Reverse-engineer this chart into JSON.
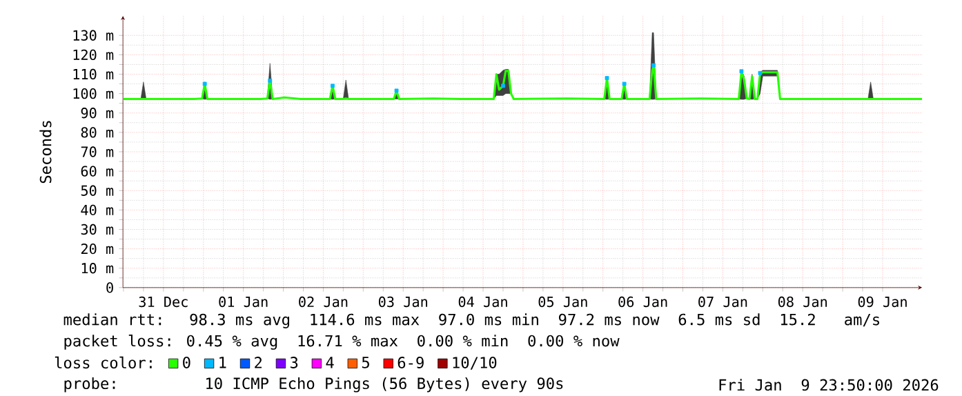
{
  "chart_data": {
    "type": "line",
    "ylabel": "Seconds",
    "legend_title": "loss color:",
    "annotations": [
      "median rtt:  98.3 ms avg  114.6 ms max  97.0 ms min  97.2 ms now  6.5 ms sd  15.2   am/s",
      "packet loss: 0.45 % avg  16.71 % max  0.00 % min  0.00 % now",
      "probe:       10 ICMP Echo Pings (56 Bytes) every 90s",
      "Fri Jan  9 23:50:00 2026"
    ],
    "xlim": [
      "2025-12-30T23:50",
      "2026-01-09T23:50"
    ],
    "xticks": [
      {
        "value": "2025-12-31T00:00",
        "label": null
      },
      {
        "value": "2025-12-31T12:00",
        "label": "31 Dec"
      },
      {
        "value": "2026-01-01T00:00",
        "label": null
      },
      {
        "value": "2026-01-01T12:00",
        "label": "01 Jan"
      },
      {
        "value": "2026-01-02T00:00",
        "label": null
      },
      {
        "value": "2026-01-02T12:00",
        "label": "02 Jan"
      },
      {
        "value": "2026-01-03T00:00",
        "label": null
      },
      {
        "value": "2026-01-03T12:00",
        "label": "03 Jan"
      },
      {
        "value": "2026-01-04T00:00",
        "label": null
      },
      {
        "value": "2026-01-04T12:00",
        "label": "04 Jan"
      },
      {
        "value": "2026-01-05T00:00",
        "label": null
      },
      {
        "value": "2026-01-05T12:00",
        "label": "05 Jan"
      },
      {
        "value": "2026-01-06T00:00",
        "label": null
      },
      {
        "value": "2026-01-06T12:00",
        "label": "06 Jan"
      },
      {
        "value": "2026-01-07T00:00",
        "label": null
      },
      {
        "value": "2026-01-07T12:00",
        "label": "07 Jan"
      },
      {
        "value": "2026-01-08T00:00",
        "label": null
      },
      {
        "value": "2026-01-08T12:00",
        "label": "08 Jan"
      },
      {
        "value": "2026-01-09T00:00",
        "label": null
      },
      {
        "value": "2026-01-09T12:00",
        "label": "09 Jan"
      }
    ],
    "ylim": [
      0,
      140
    ],
    "yticks": [
      {
        "value": 0,
        "label": "0"
      },
      {
        "value": 10,
        "label": "10 m"
      },
      {
        "value": 20,
        "label": "20 m"
      },
      {
        "value": 30,
        "label": "30 m"
      },
      {
        "value": 40,
        "label": "40 m"
      },
      {
        "value": 50,
        "label": "50 m"
      },
      {
        "value": 60,
        "label": "60 m"
      },
      {
        "value": 70,
        "label": "70 m"
      },
      {
        "value": 80,
        "label": "80 m"
      },
      {
        "value": 90,
        "label": "90 m"
      },
      {
        "value": 100,
        "label": "100 m"
      },
      {
        "value": 110,
        "label": "110 m"
      },
      {
        "value": 120,
        "label": "120 m"
      },
      {
        "value": 130,
        "label": "130 m"
      }
    ],
    "grid": true,
    "legend": "bottom",
    "series": [
      {
        "name": "0",
        "color": "#26ff00",
        "x": [
          "2025-12-31T00:00",
          "2025-12-31T05:12",
          "2025-12-31T06:00",
          "2025-12-31T06:48",
          "2025-12-31T21:12",
          "2025-12-31T23:36",
          "2026-01-01T00:24",
          "2026-01-01T01:12",
          "2026-01-01T17:12",
          "2026-01-01T19:12",
          "2026-01-01T20:00",
          "2026-01-01T20:48",
          "2026-01-02T00:24",
          "2026-01-02T05:12",
          "2026-01-02T14:00",
          "2026-01-02T14:48",
          "2026-01-02T15:36",
          "2026-01-02T18:00",
          "2026-01-02T18:48",
          "2026-01-02T19:36",
          "2026-01-03T09:12",
          "2026-01-03T10:00",
          "2026-01-03T10:48",
          "2026-01-03T21:12",
          "2026-01-04T05:12",
          "2026-01-04T15:12",
          "2026-01-04T16:00",
          "2026-01-04T16:48",
          "2026-01-04T18:00",
          "2026-01-04T18:48",
          "2026-01-04T19:36",
          "2026-01-04T20:24",
          "2026-01-04T21:12",
          "2026-01-05T13:12",
          "2026-01-06T00:24",
          "2026-01-06T01:12",
          "2026-01-06T02:00",
          "2026-01-06T05:36",
          "2026-01-06T06:24",
          "2026-01-06T07:12",
          "2026-01-06T14:00",
          "2026-01-06T14:48",
          "2026-01-06T15:12",
          "2026-01-06T16:00",
          "2026-01-07T05:12",
          "2026-01-07T16:48",
          "2026-01-07T17:36",
          "2026-01-07T18:24",
          "2026-01-07T19:12",
          "2026-01-07T20:00",
          "2026-01-07T20:48",
          "2026-01-07T21:36",
          "2026-01-07T22:24",
          "2026-01-07T23:12",
          "2026-01-08T00:00",
          "2026-01-08T04:24",
          "2026-01-08T05:12",
          "2026-01-08T21:12",
          "2026-01-09T07:36",
          "2026-01-09T08:24",
          "2026-01-09T09:12",
          "2026-01-09T23:50"
        ],
        "values": [
          97.2,
          97.2,
          97.2,
          97.2,
          97.2,
          97.5,
          105,
          97.2,
          97.2,
          97.5,
          106.7,
          97.2,
          98,
          97.2,
          97.2,
          104,
          97.2,
          97.2,
          97.5,
          97.2,
          97.2,
          101.5,
          97.2,
          97.5,
          97.2,
          97.2,
          110,
          102,
          104,
          111.7,
          111.7,
          100,
          97.2,
          97.5,
          97.2,
          108,
          97.2,
          97.2,
          105,
          97.2,
          97.2,
          112,
          114.6,
          97.2,
          97.5,
          97.2,
          111.5,
          107,
          97.5,
          97.2,
          109,
          97.2,
          97.2,
          110.6,
          111,
          111,
          97.2,
          97.2,
          97.2,
          97.2,
          97.2,
          97.2
        ],
        "lower": [
          97.2,
          97.2,
          97.2,
          97.2,
          97.2,
          97.5,
          97,
          97.2,
          97.2,
          97.5,
          97,
          97.2,
          98,
          97.2,
          97.2,
          97,
          97.2,
          97.2,
          97,
          97.2,
          97.2,
          97.2,
          97.2,
          97.5,
          97.2,
          97.2,
          99,
          99,
          99,
          100,
          100,
          100,
          97.2,
          97.5,
          97.2,
          97,
          97.2,
          97.2,
          97,
          97.2,
          97.2,
          97,
          97,
          97.2,
          97.5,
          97.2,
          97,
          97,
          97.5,
          97.2,
          97,
          97.2,
          97.2,
          100,
          109,
          109,
          97.2,
          97.2,
          97.2,
          97.2,
          97.2,
          97.2
        ],
        "upper": [
          97.2,
          97.2,
          106,
          97.2,
          97.2,
          97.5,
          106,
          97.2,
          97.2,
          97.5,
          115.6,
          97.2,
          98,
          97.2,
          97.2,
          104,
          97.2,
          97.2,
          107,
          97.2,
          97.2,
          101.5,
          97.2,
          97.5,
          97.2,
          97.2,
          110,
          110,
          112,
          112.5,
          112.5,
          100,
          97.2,
          97.5,
          97.2,
          108.8,
          97.2,
          97.2,
          105,
          97.2,
          97.2,
          131.4,
          131.4,
          97.2,
          97.5,
          97.2,
          112,
          109,
          97.5,
          97.2,
          110,
          97.2,
          97.2,
          111,
          112,
          112,
          97.2,
          97.2,
          97.2,
          106,
          97.2,
          97.2
        ]
      },
      {
        "name": "1",
        "color": "#00b8ff",
        "type": "scatter",
        "x": [
          "2026-01-01T00:24",
          "2026-01-01T20:00",
          "2026-01-02T14:48",
          "2026-01-03T10:00",
          "2026-01-04T18:00",
          "2026-01-06T01:12",
          "2026-01-06T06:24",
          "2026-01-06T15:12",
          "2026-01-07T17:36",
          "2026-01-07T23:12"
        ],
        "values": [
          105,
          106.7,
          104,
          101.5,
          104,
          108,
          105,
          114.6,
          111.5,
          110.6
        ]
      },
      {
        "name": "2",
        "color": "#0059ff"
      },
      {
        "name": "3",
        "color": "#7e00ff"
      },
      {
        "name": "4",
        "color": "#ff00ff"
      },
      {
        "name": "5",
        "color": "#ff5e00"
      },
      {
        "name": "6-9",
        "color": "#ff0000"
      },
      {
        "name": "10/10",
        "color": "#a00000"
      }
    ]
  }
}
